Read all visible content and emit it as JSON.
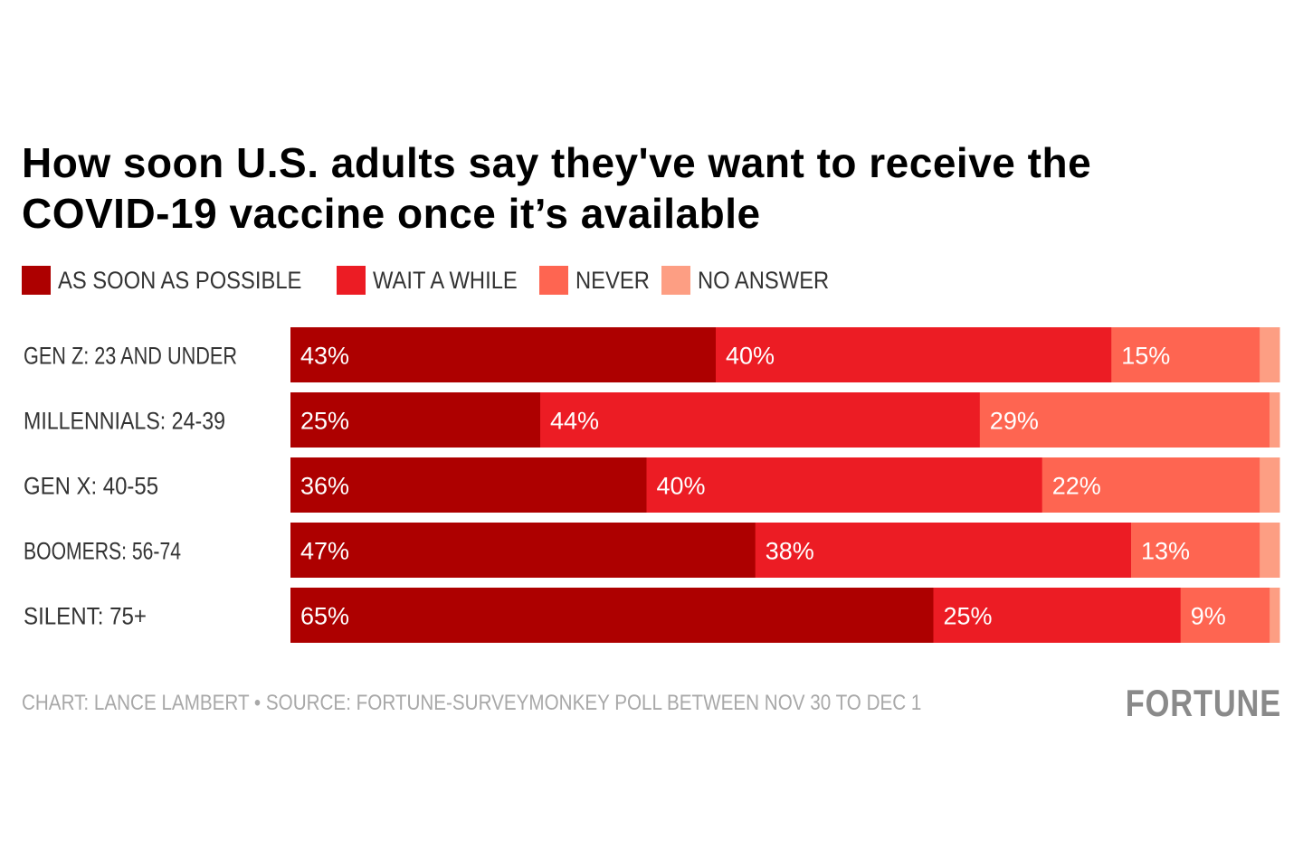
{
  "chart_data": {
    "type": "bar",
    "orientation": "horizontal",
    "stacked": true,
    "title": "How soon U.S. adults say they've want to receive the COVID-19 vaccine once it’s available",
    "title_lines": [
      "How soon U.S. adults say they've want to receive the",
      "COVID-19 vaccine once it’s available"
    ],
    "categories": [
      "GEN Z: 23 AND UNDER",
      "MILLENNIALS: 24-39",
      "GEN X: 40-55",
      "BOOMERS: 56-74",
      "SILENT: 75+"
    ],
    "series": [
      {
        "name": "AS SOON AS POSSIBLE",
        "color": "#ad0000",
        "values": [
          43,
          25,
          36,
          47,
          65
        ],
        "labels": [
          "43%",
          "25%",
          "36%",
          "47%",
          "65%"
        ]
      },
      {
        "name": "WAIT A WHILE",
        "color": "#ec1c24",
        "values": [
          40,
          44,
          40,
          38,
          25
        ],
        "labels": [
          "40%",
          "44%",
          "40%",
          "38%",
          "25%"
        ]
      },
      {
        "name": "NEVER",
        "color": "#fe6551",
        "values": [
          15,
          29,
          22,
          13,
          9
        ],
        "labels": [
          "15%",
          "29%",
          "22%",
          "13%",
          "9%"
        ]
      },
      {
        "name": "NO ANSWER",
        "color": "#fd9e83",
        "values": [
          2,
          1,
          2,
          2,
          1
        ],
        "labels": [
          "",
          "",
          "",
          "",
          ""
        ]
      }
    ],
    "xlim": [
      0,
      100
    ],
    "xlabel": "",
    "ylabel": "",
    "grid": false,
    "legend": "top-left",
    "units": "%"
  },
  "footer": {
    "credit": "CHART: LANCE LAMBERT • SOURCE: FORTUNE-SURVEYMONKEY POLL BETWEEN NOV 30 TO DEC 1",
    "logo": "FORTUNE"
  }
}
